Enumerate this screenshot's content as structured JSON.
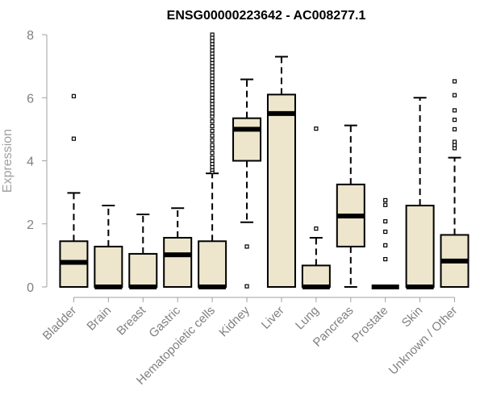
{
  "chart_data": {
    "type": "boxplot",
    "title": "ENSG00000223642 - AC008277.1",
    "ylabel": "Expression",
    "xlabel": "",
    "ylim": [
      0,
      8
    ],
    "yticks": [
      0,
      2,
      4,
      6,
      8
    ],
    "colors": {
      "box_fill": "#ede6cc",
      "stroke": "#000000",
      "axis": "#a0a0a0"
    },
    "categories": [
      "Bladder",
      "Brain",
      "Breast",
      "Gastric",
      "Hematopoietic cells",
      "Kidney",
      "Liver",
      "Lung",
      "Pancreas",
      "Prostate",
      "Skin",
      "Unknown / Other"
    ],
    "boxes": [
      {
        "category": "Bladder",
        "whisker_low": 0,
        "q1": 0,
        "median": 0.78,
        "q3": 1.45,
        "whisker_high": 2.98,
        "outliers": [
          4.7,
          6.05
        ]
      },
      {
        "category": "Brain",
        "whisker_low": 0,
        "q1": 0,
        "median": 0,
        "q3": 1.28,
        "whisker_high": 2.58,
        "outliers": []
      },
      {
        "category": "Breast",
        "whisker_low": 0,
        "q1": 0,
        "median": 0,
        "q3": 1.05,
        "whisker_high": 2.3,
        "outliers": []
      },
      {
        "category": "Gastric",
        "whisker_low": 0,
        "q1": 0,
        "median": 1.02,
        "q3": 1.56,
        "whisker_high": 2.5,
        "outliers": []
      },
      {
        "category": "Hematopoietic cells",
        "whisker_low": 0,
        "q1": 0,
        "median": 0,
        "q3": 1.45,
        "whisker_high": 3.6,
        "outliers": [
          3.65,
          3.72,
          3.8,
          3.9,
          4.0,
          4.1,
          4.25,
          4.4,
          4.5,
          4.65,
          4.8,
          4.95,
          5.1,
          5.25,
          5.4,
          5.5,
          5.6,
          5.7,
          5.8,
          5.9,
          6.0,
          6.1,
          6.2,
          6.3,
          6.4,
          6.5,
          6.6,
          6.7,
          6.8,
          6.9,
          7.0,
          7.1,
          7.2,
          7.3,
          7.4,
          7.5,
          7.6,
          7.7,
          7.8,
          7.9,
          8.0
        ]
      },
      {
        "category": "Kidney",
        "whisker_low": 2.05,
        "q1": 4.0,
        "median": 5.0,
        "q3": 5.35,
        "whisker_high": 6.58,
        "outliers": [
          0.02,
          1.28
        ]
      },
      {
        "category": "Liver",
        "whisker_low": 0,
        "q1": 0,
        "median": 5.5,
        "q3": 6.1,
        "whisker_high": 7.3,
        "outliers": []
      },
      {
        "category": "Lung",
        "whisker_low": 0,
        "q1": 0,
        "median": 0,
        "q3": 0.68,
        "whisker_high": 1.56,
        "outliers": [
          1.85,
          5.02
        ]
      },
      {
        "category": "Pancreas",
        "whisker_low": 0,
        "q1": 1.28,
        "median": 2.25,
        "q3": 3.25,
        "whisker_high": 5.12,
        "outliers": []
      },
      {
        "category": "Prostate",
        "whisker_low": 0,
        "q1": 0,
        "median": 0,
        "q3": 0,
        "whisker_high": 0,
        "outliers": [
          0.88,
          1.32,
          1.75,
          2.08,
          2.6,
          2.75
        ]
      },
      {
        "category": "Skin",
        "whisker_low": 0,
        "q1": 0,
        "median": 0,
        "q3": 2.58,
        "whisker_high": 6.0,
        "outliers": []
      },
      {
        "category": "Unknown / Other",
        "whisker_low": 0,
        "q1": 0,
        "median": 0.82,
        "q3": 1.65,
        "whisker_high": 4.1,
        "outliers": [
          4.4,
          4.5,
          4.6,
          5.0,
          5.3,
          5.6,
          6.08,
          6.52
        ]
      }
    ]
  }
}
